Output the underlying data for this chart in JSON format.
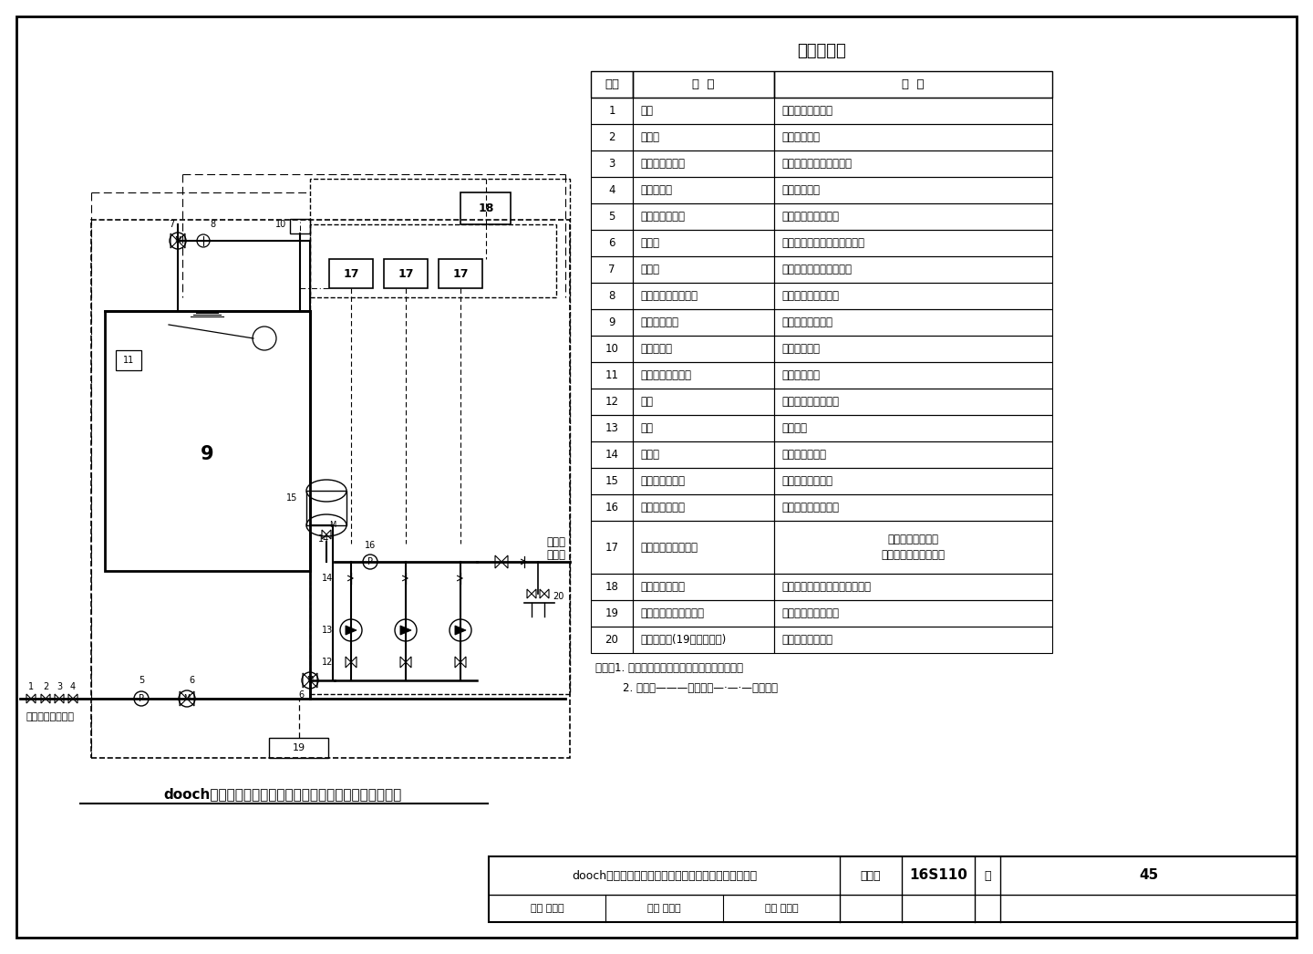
{
  "title": "主要部件表",
  "table_headers": [
    "序号",
    "名  称",
    "用  途"
  ],
  "table_rows": [
    [
      "1",
      "阀门",
      "进水总管控制阀门"
    ],
    [
      "2",
      "过滤器",
      "过滤管网进水"
    ],
    [
      "3",
      "可曲挠橡胶接头",
      "隔振、便于管路拆卸检修"
    ],
    [
      "4",
      "倒流防止器",
      "防止回流污染"
    ],
    [
      "5",
      "进水压力传感器",
      "检测设备进水管压力"
    ],
    [
      "6",
      "电动阀",
      "叠压进水与水箱吸水自动切换"
    ],
    [
      "7",
      "电动阀",
      "水箱满水溢流时紧急关闭"
    ],
    [
      "8",
      "遥控液压水位控制阀",
      "水箱进水时自动开启"
    ],
    [
      "9",
      "不锈钢储水箱",
      "储存高峰时段用水"
    ],
    [
      "10",
      "液位传感器",
      "检测水箱液位"
    ],
    [
      "11",
      "水箱自动清洗装置",
      "定期清洁水箱"
    ],
    [
      "12",
      "阀门",
      "水泵进、出水控制阀"
    ],
    [
      "13",
      "水泵",
      "增压供水"
    ],
    [
      "14",
      "止回阀",
      "防止压力水回流"
    ],
    [
      "15",
      "胶囊式气压水罐",
      "保持系统压力稳定"
    ],
    [
      "16",
      "出水压力传感器",
      "检测设备出水管压力"
    ],
    [
      "17",
      "数字集成变频控制器",
      "控制水泵变频运行\n参数设定、调整与显示"
    ],
    [
      "18",
      "自动控制触摸屏",
      "设定、调整及显示设备运行参数"
    ],
    [
      "19",
      "紫外线消毒器（选配）",
      "对水质在线消毒灭菌"
    ],
    [
      "20",
      "消毒器接口(19未配置时用)",
      "供连接消毒装置用"
    ]
  ],
  "diagram_title": "dooch系列箱式全变频叠压供水设备基本组成及控制原理图",
  "note_lines": [
    "说明：1. 图中虚线框内为厂家成套设备供货范围。",
    "        2. 图例：———控制线；—·—·—信号线。"
  ],
  "footer_title": "dooch系列箱式全变频叠压供水设备基本组成及控制原理",
  "footer_atlas": "图集号",
  "footer_atlas_val": "16S110",
  "footer_page_label": "页",
  "footer_page_val": "45",
  "footer_review": "审核 罗定元",
  "footer_check": "校对 吴海林",
  "footer_design": "设计 杨明芬",
  "bg_color": "#ffffff",
  "line_color": "#000000"
}
